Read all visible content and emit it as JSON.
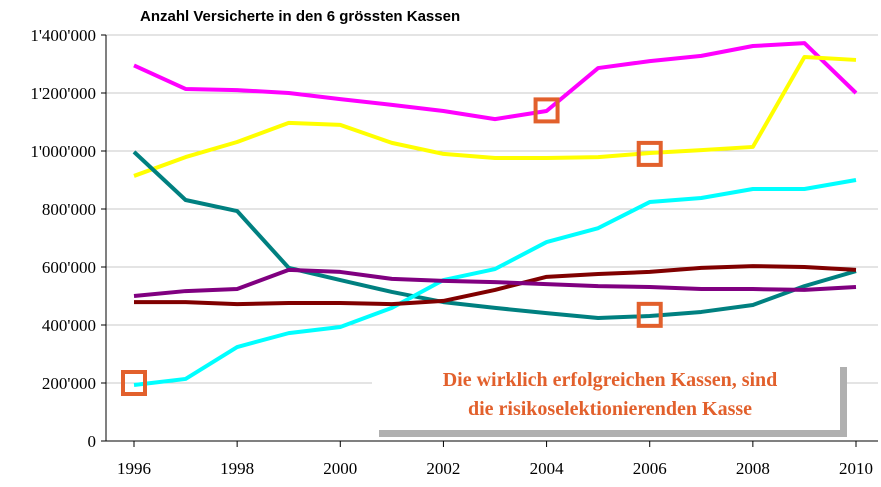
{
  "chart_data": {
    "type": "line",
    "title": "Anzahl Versicherte in den 6 grössten Kassen",
    "x": [
      1996,
      1997,
      1998,
      1999,
      2000,
      2001,
      2002,
      2003,
      2004,
      2005,
      2006,
      2007,
      2008,
      2009,
      2010
    ],
    "xlim": [
      1996,
      2010
    ],
    "xticks": [
      1996,
      1998,
      2000,
      2002,
      2004,
      2006,
      2008,
      2010
    ],
    "ylim": [
      0,
      1400000
    ],
    "yticks": [
      0,
      {
        "value": 200000,
        "label": "200'000"
      },
      {
        "value": 400000,
        "label": "400'000"
      },
      {
        "value": 600000,
        "label": "600'000"
      },
      {
        "value": 800000,
        "label": "800'000"
      },
      {
        "value": 1000000,
        "label": "1'000'000"
      },
      {
        "value": 1200000,
        "label": "1'200'000"
      },
      {
        "value": 1400000,
        "label": "1'400'000"
      }
    ],
    "grid": true,
    "series": [
      {
        "color": "#ff00ff",
        "values": [
          1295000,
          1214000,
          1210000,
          1200000,
          1179000,
          1159000,
          1138000,
          1110000,
          1138000,
          1286000,
          1310000,
          1328000,
          1362000,
          1372000,
          1200000
        ]
      },
      {
        "color": "#ffff00",
        "values": [
          914000,
          979000,
          1031000,
          1097000,
          1090000,
          1028000,
          990000,
          976000,
          976000,
          979000,
          993000,
          1003000,
          1014000,
          1324000,
          1314000
        ]
      },
      {
        "color": "#008080",
        "values": [
          997000,
          831000,
          793000,
          597000,
          555000,
          514000,
          479000,
          459000,
          441000,
          424000,
          431000,
          445000,
          469000,
          534000,
          586000
        ]
      },
      {
        "color": "#00ffff",
        "values": [
          193000,
          214000,
          324000,
          372000,
          393000,
          459000,
          555000,
          593000,
          686000,
          734000,
          824000,
          838000,
          869000,
          869000,
          900000
        ]
      },
      {
        "color": "#800000",
        "values": [
          479000,
          479000,
          472000,
          476000,
          476000,
          472000,
          483000,
          521000,
          566000,
          576000,
          583000,
          597000,
          603000,
          600000,
          590000
        ]
      },
      {
        "color": "#800080",
        "values": [
          500000,
          517000,
          524000,
          590000,
          583000,
          559000,
          552000,
          548000,
          541000,
          534000,
          531000,
          524000,
          524000,
          521000,
          531000
        ]
      }
    ],
    "highlights": [
      {
        "x": 1996,
        "y": 200000
      },
      {
        "x": 2004,
        "y": 1140000
      },
      {
        "x": 2006,
        "y": 990000
      },
      {
        "x": 2006,
        "y": 435000
      }
    ],
    "highlight_color": "#e2602c",
    "annotation": [
      "Die wirklich erfolgreichen Kassen, sind",
      "die risikoselektionierenden Kasse"
    ]
  }
}
